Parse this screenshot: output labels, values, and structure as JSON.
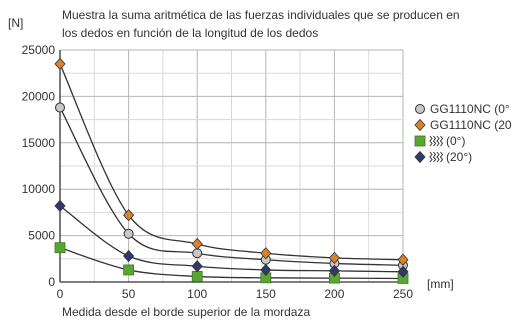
{
  "chart_data": {
    "type": "line",
    "title_lines": [
      "Muestra la suma aritmética de las fuerzas individuales que se producen en",
      "los dedos en función de la longitud de los dedos"
    ],
    "ylabel": "[N]",
    "xlabel": "Medida desde el borde superior de la mordaza",
    "xunit": "[mm]",
    "xlim": [
      0,
      250
    ],
    "ylim": [
      0,
      25000
    ],
    "xticks": [
      0,
      50,
      100,
      150,
      200,
      250
    ],
    "yticks": [
      0,
      5000,
      10000,
      15000,
      20000,
      25000
    ],
    "grid": true,
    "legend_position": "right",
    "x": [
      0,
      50,
      100,
      150,
      200,
      250
    ],
    "series": [
      {
        "name": "GG1110NC (0°",
        "marker": "circle",
        "color": "#c8c8c8",
        "values": [
          18800,
          5200,
          3100,
          2400,
          2000,
          1800
        ]
      },
      {
        "name": "GG1110NC (20",
        "marker": "diamond",
        "color": "#d9822b",
        "values": [
          23500,
          7200,
          4100,
          3100,
          2600,
          2400
        ]
      },
      {
        "name": "(0°)",
        "marker": "square",
        "color": "#5aa632",
        "values": [
          3700,
          1300,
          600,
          450,
          420,
          380
        ]
      },
      {
        "name": "(20°)",
        "marker": "diamond",
        "color": "#2d3a6b",
        "values": [
          8200,
          2800,
          1700,
          1300,
          1200,
          1100
        ]
      }
    ]
  }
}
